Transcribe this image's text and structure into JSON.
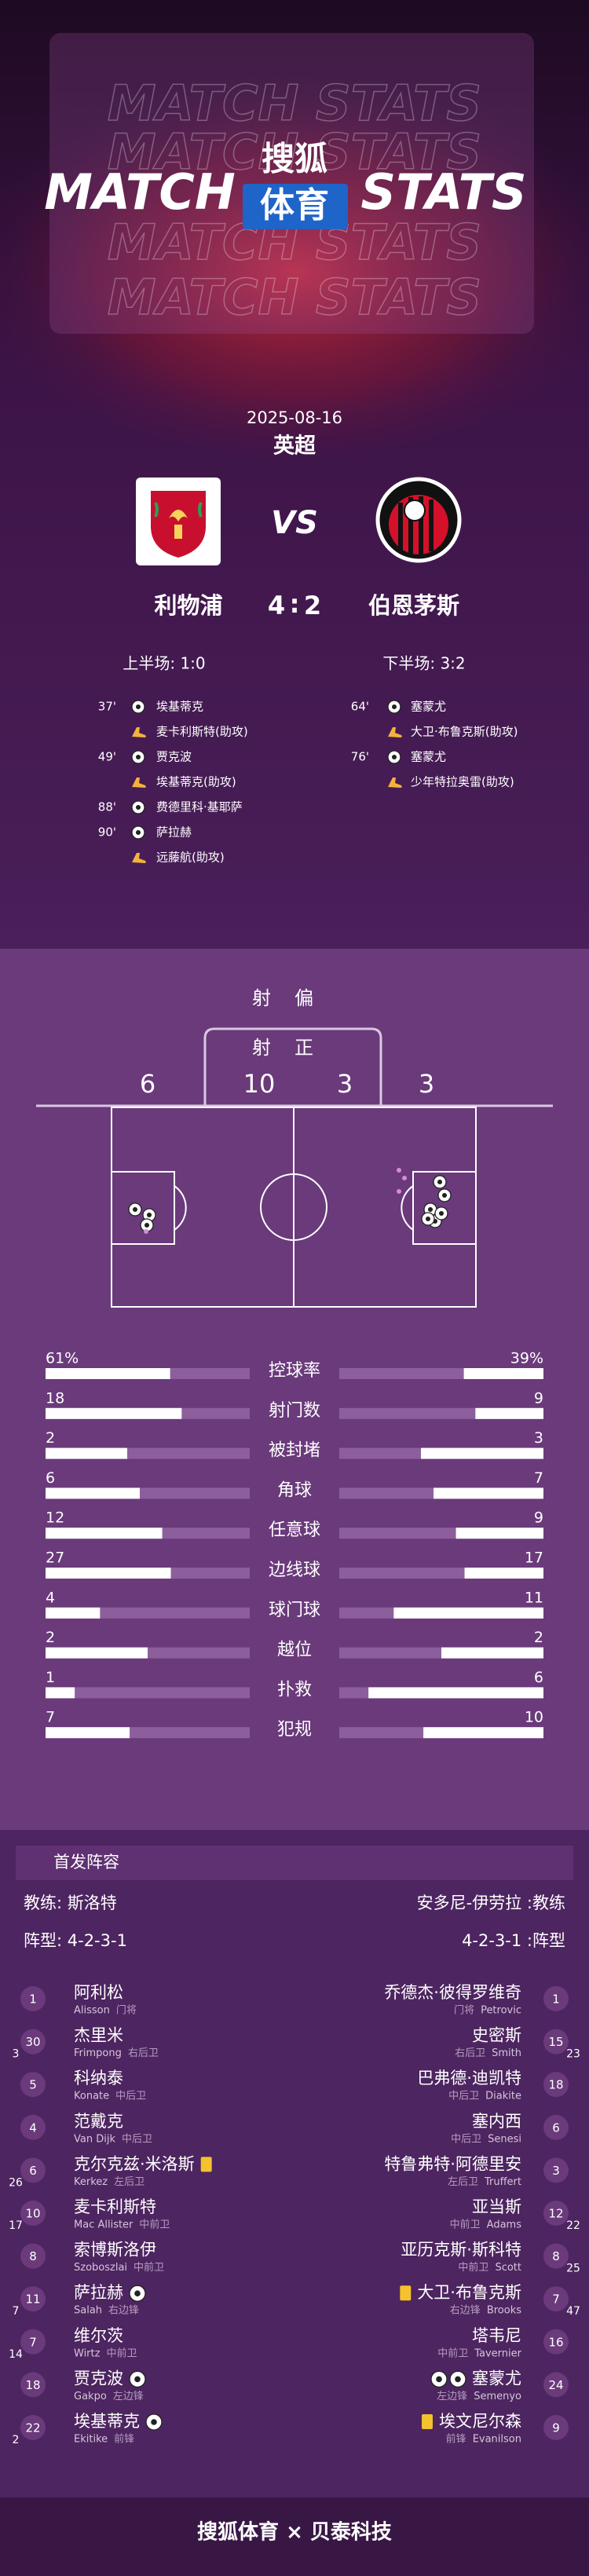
{
  "header": {
    "watermark": "MATCH STATS",
    "left": "MATCH",
    "right": "STATS",
    "brand": "搜狐",
    "brand_sub": "体育"
  },
  "match": {
    "date": "2025-08-16",
    "league": "英超",
    "vs": "VS",
    "home": "利物浦",
    "away": "伯恩茅斯",
    "home_score": 4,
    "score_sep": ":",
    "away_score": 2,
    "home_half": "上半场: 1:0",
    "away_half": "下半场: 3:2"
  },
  "events": {
    "home": [
      {
        "minute": "37'",
        "player": "埃基蒂克",
        "assist": "麦卡利斯特(助攻)"
      },
      {
        "minute": "49'",
        "player": "贾克波",
        "assist": "埃基蒂克(助攻)"
      },
      {
        "minute": "88'",
        "player": "费德里科·基耶萨"
      },
      {
        "minute": "90'",
        "player": "萨拉赫",
        "assist": "远藤航(助攻)"
      }
    ],
    "away": [
      {
        "minute": "64'",
        "player": "塞蒙尤",
        "assist": "大卫·布鲁克斯(助攻)"
      },
      {
        "minute": "76'",
        "player": "塞蒙尤",
        "assist": "少年特拉奥雷(助攻)"
      }
    ]
  },
  "shots": {
    "off_label": "射偏",
    "on_label": "射正",
    "home_off": 6,
    "home_on": 10,
    "away_on": 3,
    "away_off": 3
  },
  "stats": [
    {
      "label": "控球率",
      "home": 61,
      "away": 39,
      "home_label": "61%",
      "away_label": "39%"
    },
    {
      "label": "射门数",
      "home": 18,
      "away": 9
    },
    {
      "label": "被封堵",
      "home": 2,
      "away": 3
    },
    {
      "label": "角球",
      "home": 6,
      "away": 7
    },
    {
      "label": "任意球",
      "home": 12,
      "away": 9
    },
    {
      "label": "边线球",
      "home": 27,
      "away": 17
    },
    {
      "label": "球门球",
      "home": 4,
      "away": 11
    },
    {
      "label": "越位",
      "home": 2,
      "away": 2
    },
    {
      "label": "扑救",
      "home": 1,
      "away": 6
    },
    {
      "label": "犯规",
      "home": 7,
      "away": 10
    }
  ],
  "lineup": {
    "title": "首发阵容",
    "home_coach": "教练: 斯洛特",
    "away_coach": "安多尼-伊劳拉 :教练",
    "home_formation": "阵型: 4-2-3-1",
    "away_formation": "4-2-3-1 :阵型",
    "home": [
      {
        "no": 1,
        "name": "阿利松",
        "en": "Alisson",
        "pos": "门将"
      },
      {
        "no": 30,
        "name": "杰里米",
        "en": "Frimpong",
        "pos": "右后卫",
        "sub": 3
      },
      {
        "no": 5,
        "name": "科纳泰",
        "en": "Konate",
        "pos": "中后卫"
      },
      {
        "no": 4,
        "name": "范戴克",
        "en": "Van Dijk",
        "pos": "中后卫"
      },
      {
        "no": 6,
        "name": "克尔克兹·米洛斯",
        "en": "Kerkez",
        "pos": "左后卫",
        "sub": 26,
        "yellow": true
      },
      {
        "no": 10,
        "name": "麦卡利斯特",
        "en": "Mac Allister",
        "pos": "中前卫",
        "sub": 17
      },
      {
        "no": 8,
        "name": "索博斯洛伊",
        "en": "Szoboszlai",
        "pos": "中前卫"
      },
      {
        "no": 11,
        "name": "萨拉赫",
        "en": "Salah",
        "pos": "右边锋",
        "sub": 7,
        "goals": 1
      },
      {
        "no": 7,
        "name": "维尔茨",
        "en": "Wirtz",
        "pos": "中前卫",
        "sub": 14
      },
      {
        "no": 18,
        "name": "贾克波",
        "en": "Gakpo",
        "pos": "左边锋",
        "goals": 1
      },
      {
        "no": 22,
        "name": "埃基蒂克",
        "en": "Ekitike",
        "pos": "前锋",
        "sub": 2,
        "goals": 1
      }
    ],
    "away": [
      {
        "no": 1,
        "name": "乔德杰·彼得罗维奇",
        "en": "Petrovic",
        "pos": "门将"
      },
      {
        "no": 15,
        "name": "史密斯",
        "en": "Smith",
        "pos": "右后卫",
        "sub": 23
      },
      {
        "no": 18,
        "name": "巴弗德·迪凯特",
        "en": "Diakite",
        "pos": "中后卫"
      },
      {
        "no": 6,
        "name": "塞内西",
        "en": "Senesi",
        "pos": "中后卫"
      },
      {
        "no": 3,
        "name": "特鲁弗特·阿德里安",
        "en": "Truffert",
        "pos": "左后卫"
      },
      {
        "no": 12,
        "name": "亚当斯",
        "en": "Adams",
        "pos": "中前卫",
        "sub": 22
      },
      {
        "no": 8,
        "name": "亚历克斯·斯科特",
        "en": "Scott",
        "pos": "中前卫",
        "sub": 25
      },
      {
        "no": 7,
        "name": "大卫·布鲁克斯",
        "en": "Brooks",
        "pos": "右边锋",
        "sub": 47,
        "yellow": true
      },
      {
        "no": 16,
        "name": "塔韦尼",
        "en": "Tavernier",
        "pos": "中前卫"
      },
      {
        "no": 24,
        "name": "塞蒙尤",
        "en": "Semenyo",
        "pos": "左边锋",
        "goals": 2
      },
      {
        "no": 9,
        "name": "埃文尼尔森",
        "en": "Evanilson",
        "pos": "前锋",
        "yellow": true
      }
    ]
  },
  "footer": "搜狐体育 × 贝泰科技"
}
